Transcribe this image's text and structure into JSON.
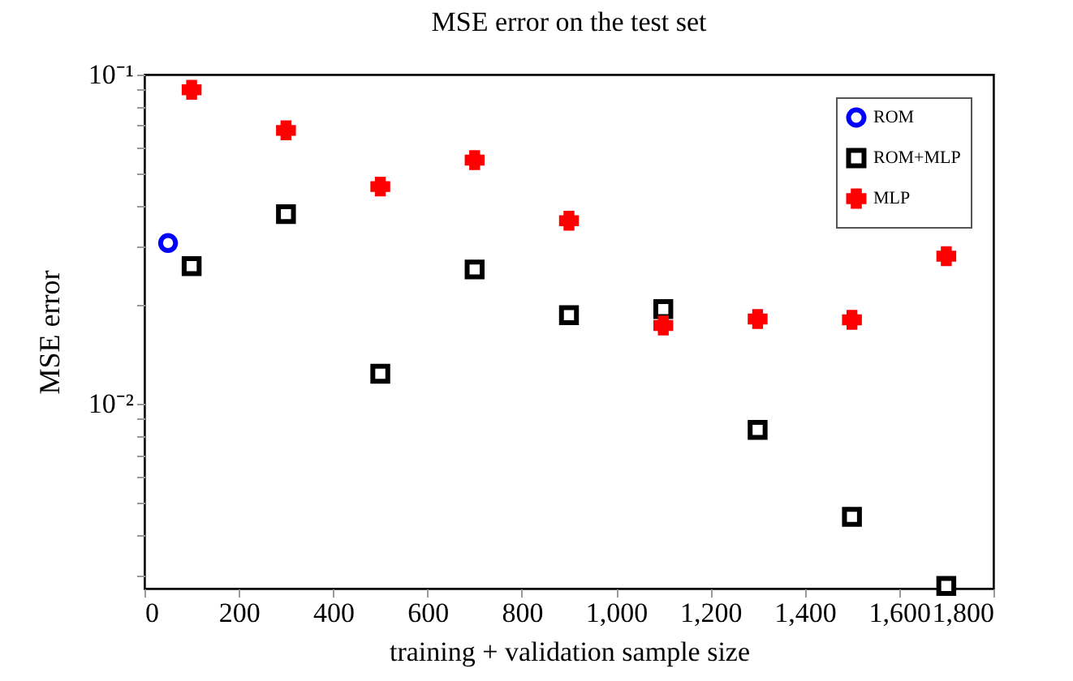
{
  "chart_data": {
    "type": "scatter",
    "title": "MSE error on the test set",
    "xlabel": "training + validation sample size",
    "ylabel": "MSE error",
    "log": "y",
    "grid": false,
    "legend": "top right",
    "xlim": [
      0,
      1800
    ],
    "xticks": [
      0,
      200,
      400,
      600,
      800,
      {
        "value": 1000,
        "label": "1,000"
      },
      {
        "value": 1200,
        "label": "1,200"
      },
      {
        "value": 1400,
        "label": "1,400"
      },
      {
        "value": 1600,
        "label": "1,600"
      },
      {
        "value": 1800,
        "label": "1,800"
      }
    ],
    "ylim": [
      0.00275,
      0.1
    ],
    "yticks": [
      {
        "value": 0.003,
        "label": null
      },
      {
        "value": 0.004,
        "label": null
      },
      {
        "value": 0.005,
        "label": null
      },
      {
        "value": 0.006,
        "label": null
      },
      {
        "value": 0.007,
        "label": null
      },
      {
        "value": 0.008,
        "label": null
      },
      {
        "value": 0.009,
        "label": null
      },
      {
        "value": 0.01,
        "label": "10⁻²"
      },
      {
        "value": 0.02,
        "label": null
      },
      {
        "value": 0.03,
        "label": null
      },
      {
        "value": 0.04,
        "label": null
      },
      {
        "value": 0.05,
        "label": null
      },
      {
        "value": 0.06,
        "label": null
      },
      {
        "value": 0.07,
        "label": null
      },
      {
        "value": 0.08,
        "label": null
      },
      {
        "value": 0.09,
        "label": null
      },
      {
        "value": 0.1,
        "label": "10⁻¹"
      }
    ],
    "series": [
      {
        "name": "ROM",
        "color": "#0000ff",
        "marker": "circle",
        "x": [
          50
        ],
        "values": [
          0.0308
        ]
      },
      {
        "name": "ROM+MLP",
        "color": "#000000",
        "marker": "square",
        "x": [
          100,
          300,
          500,
          700,
          900,
          1100,
          1300,
          1500,
          1700
        ],
        "values": [
          0.0262,
          0.0377,
          0.01235,
          0.0256,
          0.0186,
          0.0194,
          0.00834,
          0.00454,
          0.0028
        ]
      },
      {
        "name": "MLP",
        "color": "#ff0000",
        "marker": "cross",
        "x": [
          100,
          300,
          500,
          700,
          900,
          1100,
          1300,
          1500,
          1700
        ],
        "values": [
          0.0899,
          0.0677,
          0.0457,
          0.055,
          0.036,
          0.0173,
          0.0181,
          0.018,
          0.0281
        ]
      }
    ]
  }
}
